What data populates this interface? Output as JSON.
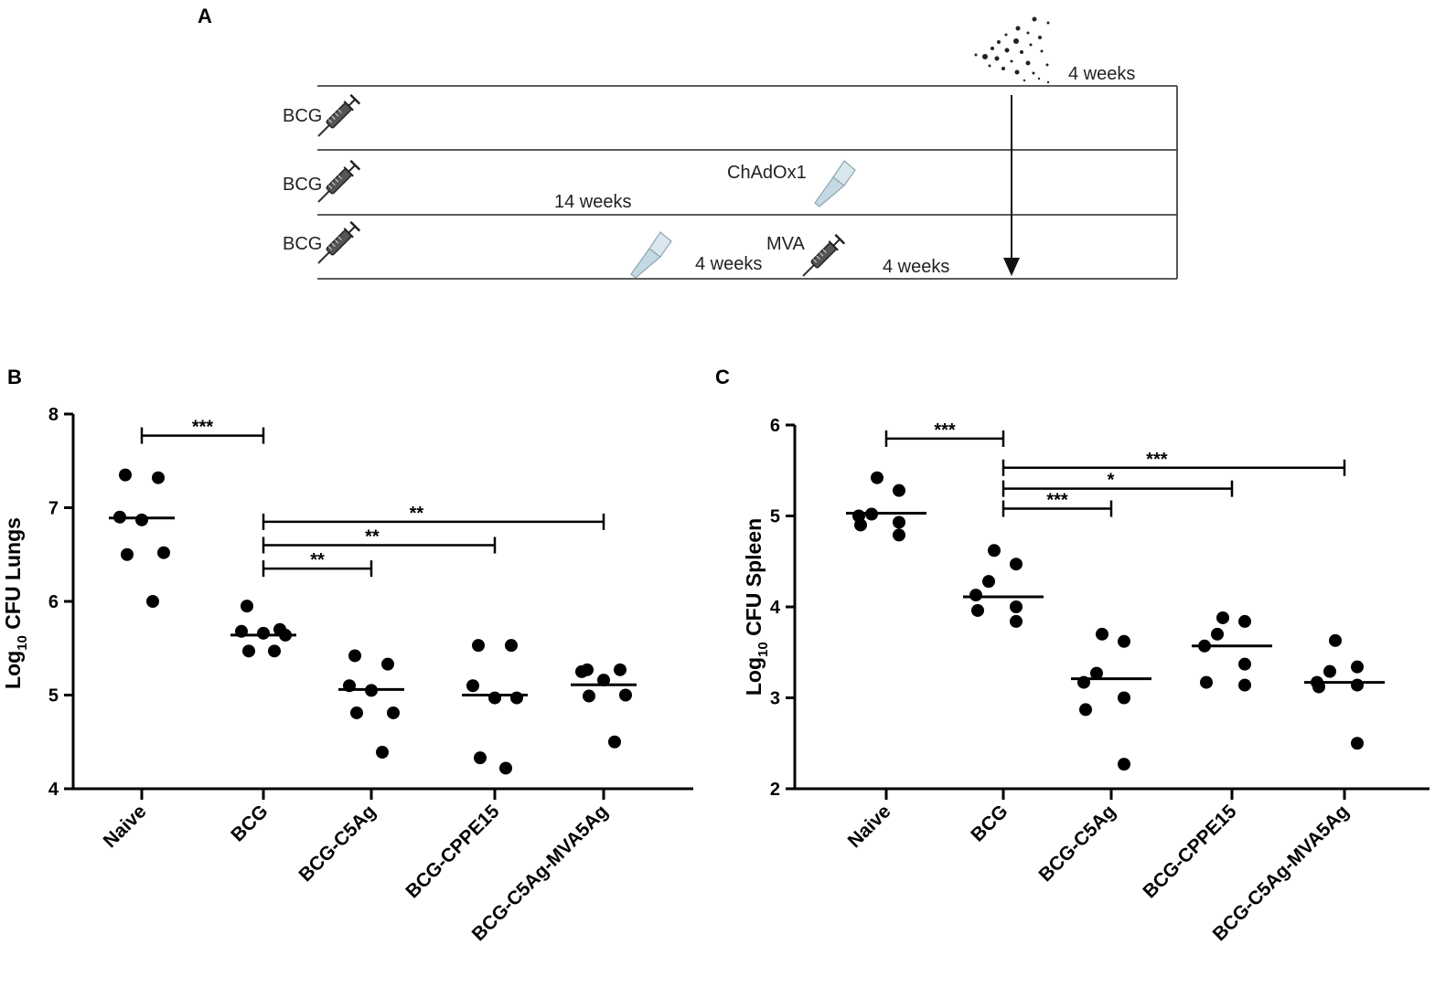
{
  "panels": {
    "a": "A",
    "b": "B",
    "c": "C"
  },
  "schematic": {
    "rows": [
      {
        "prime": "BCG",
        "boost": "",
        "interval1": "",
        "interval2": ""
      },
      {
        "prime": "BCG",
        "boost": "ChAdOx1",
        "interval1": "14 weeks",
        "interval2": ""
      },
      {
        "prime": "BCG",
        "boost": "MVA",
        "interval1": "4 weeks",
        "interval2": "4 weeks"
      }
    ],
    "challenge_interval": "4 weeks",
    "icons": [
      "syringe-icon",
      "nasal-spray-icon",
      "aerosol-icon",
      "down-arrow-icon"
    ]
  },
  "chart_data": [
    {
      "type": "scatter",
      "title": "",
      "ylabel_main": "Log",
      "ylabel_sub": "10",
      "ylabel_rest": " CFU Lungs",
      "xlabel": "",
      "ylim": [
        4,
        8
      ],
      "yticks": [
        "4",
        "5",
        "6",
        "7",
        "8"
      ],
      "categories": [
        "Naive",
        "BCG",
        "BCG-C5Ag",
        "BCG-CPPE15",
        "BCG-C5Ag-MVA5Ag"
      ],
      "medians": [
        6.89,
        5.64,
        5.06,
        5.0,
        5.11
      ],
      "points": [
        [
          7.35,
          7.32,
          6.9,
          6.87,
          6.52,
          6.5,
          6.0
        ],
        [
          5.95,
          5.7,
          5.68,
          5.66,
          5.64,
          5.47,
          5.47
        ],
        [
          5.42,
          5.33,
          5.1,
          5.05,
          4.81,
          4.81,
          4.39
        ],
        [
          5.53,
          5.53,
          5.1,
          4.97,
          4.97,
          4.33,
          4.22
        ],
        [
          5.27,
          5.27,
          5.25,
          5.16,
          5.0,
          4.99,
          4.5
        ]
      ],
      "comparisons": [
        {
          "from": 0,
          "to": 1,
          "label": "***",
          "y": 7.77
        },
        {
          "from": 1,
          "to": 2,
          "label": "**",
          "y": 6.35
        },
        {
          "from": 1,
          "to": 3,
          "label": "**",
          "y": 6.6
        },
        {
          "from": 1,
          "to": 4,
          "label": "**",
          "y": 6.85
        }
      ]
    },
    {
      "type": "scatter",
      "title": "",
      "ylabel_main": "Log",
      "ylabel_sub": "10",
      "ylabel_rest": " CFU Spleen",
      "xlabel": "",
      "ylim": [
        2,
        6
      ],
      "yticks": [
        "2",
        "3",
        "4",
        "5",
        "6"
      ],
      "categories": [
        "Naive",
        "BCG",
        "BCG-C5Ag",
        "BCG-CPPE15",
        "BCG-C5Ag-MVA5Ag"
      ],
      "medians": [
        5.03,
        4.11,
        3.21,
        3.57,
        3.17
      ],
      "points": [
        [
          5.42,
          5.28,
          5.02,
          5.0,
          4.93,
          4.9,
          4.79
        ],
        [
          4.62,
          4.47,
          4.28,
          4.13,
          4.0,
          3.96,
          3.84
        ],
        [
          3.7,
          3.62,
          3.27,
          3.17,
          3.0,
          2.87,
          2.27
        ],
        [
          3.88,
          3.84,
          3.7,
          3.57,
          3.37,
          3.17,
          3.14
        ],
        [
          3.63,
          3.34,
          3.29,
          3.17,
          3.14,
          3.12,
          2.5
        ]
      ],
      "comparisons": [
        {
          "from": 0,
          "to": 1,
          "label": "***",
          "y": 5.85
        },
        {
          "from": 1,
          "to": 2,
          "label": "***",
          "y": 5.08
        },
        {
          "from": 1,
          "to": 3,
          "label": "*",
          "y": 5.3
        },
        {
          "from": 1,
          "to": 4,
          "label": "***",
          "y": 5.53
        }
      ]
    }
  ]
}
